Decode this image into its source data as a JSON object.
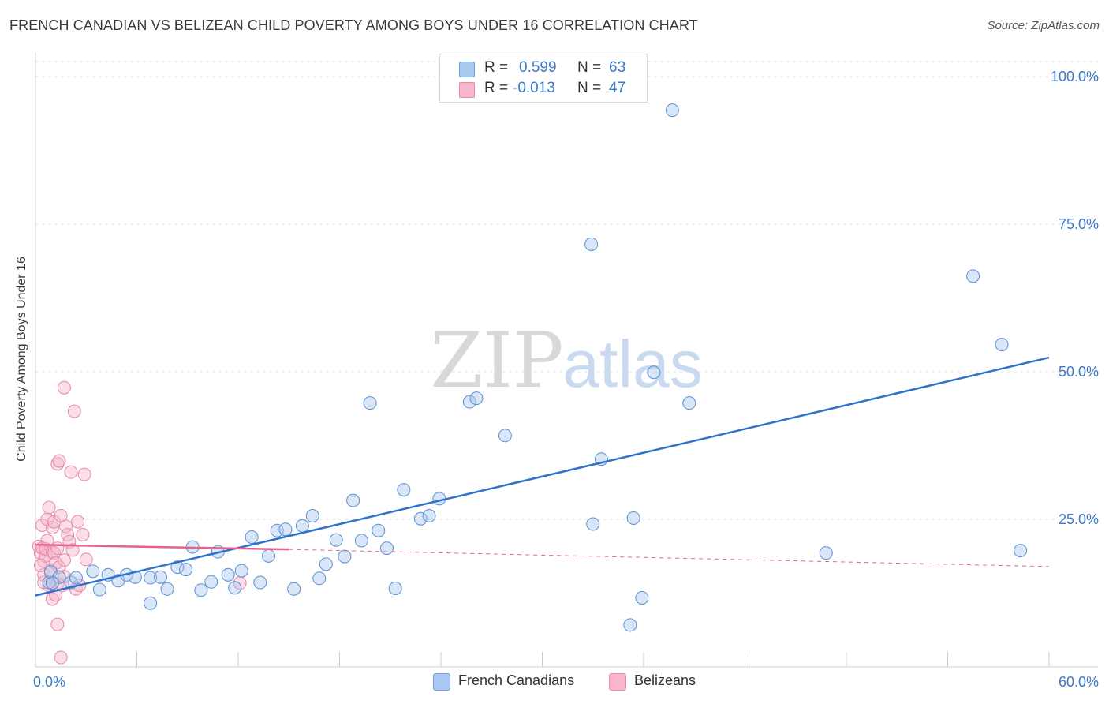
{
  "title": "FRENCH CANADIAN VS BELIZEAN CHILD POVERTY AMONG BOYS UNDER 16 CORRELATION CHART",
  "source": "Source: ZipAtlas.com",
  "watermark": {
    "zip": "ZIP",
    "atlas": "atlas"
  },
  "stats": [
    {
      "r_label": "R =",
      "r_value": "0.599",
      "n_label": "N =",
      "n_value": "63",
      "color": "#a9c8ef",
      "border": "#6f9fd8"
    },
    {
      "r_label": "R =",
      "r_value": "-0.013",
      "n_label": "N =",
      "n_value": "47",
      "color": "#f7b6cb",
      "border": "#e98aa8"
    }
  ],
  "legend": {
    "blue": "French Canadians",
    "pink": "Belizeans"
  },
  "chart_data": {
    "type": "scatter",
    "title": "FRENCH CANADIAN VS BELIZEAN CHILD POVERTY AMONG BOYS UNDER 16 CORRELATION CHART",
    "xlabel": "",
    "ylabel": "Child Poverty Among Boys Under 16",
    "xlim": [
      0,
      60
    ],
    "ylim": [
      0,
      100
    ],
    "x_tick_labels": [
      "0.0%",
      "60.0%"
    ],
    "y_tick_values": [
      25,
      50,
      75,
      100
    ],
    "y_tick_labels": [
      "25.0%",
      "50.0%",
      "75.0%",
      "100.0%"
    ],
    "grid": true,
    "colors": {
      "blue_fill": "#a9c8ef",
      "blue_stroke": "#5b8fd1",
      "blue_line": "#2f72cc",
      "pink_fill": "#f7b6cb",
      "pink_stroke": "#e58aa6",
      "pink_line": "#e8628f",
      "axis_label_blue": "#3a78c9"
    },
    "series": [
      {
        "name": "French Canadians",
        "points": [
          [
            0.8,
            14.3
          ],
          [
            0.9,
            16.1
          ],
          [
            1.4,
            15.2
          ],
          [
            2.1,
            14.3
          ],
          [
            3.4,
            16.2
          ],
          [
            3.8,
            13.1
          ],
          [
            4.3,
            15.6
          ],
          [
            4.9,
            14.6
          ],
          [
            5.4,
            15.6
          ],
          [
            5.9,
            15.2
          ],
          [
            6.8,
            15.1
          ],
          [
            6.8,
            10.8
          ],
          [
            7.4,
            15.2
          ],
          [
            7.8,
            13.2
          ],
          [
            8.4,
            16.9
          ],
          [
            8.9,
            16.5
          ],
          [
            9.3,
            20.3
          ],
          [
            9.8,
            13.0
          ],
          [
            10.4,
            14.4
          ],
          [
            10.8,
            19.5
          ],
          [
            11.4,
            15.6
          ],
          [
            11.8,
            13.4
          ],
          [
            12.2,
            16.3
          ],
          [
            12.8,
            22.0
          ],
          [
            13.3,
            14.3
          ],
          [
            13.8,
            18.8
          ],
          [
            14.3,
            23.1
          ],
          [
            14.8,
            23.3
          ],
          [
            15.3,
            13.2
          ],
          [
            15.8,
            23.9
          ],
          [
            16.4,
            25.6
          ],
          [
            16.8,
            15.0
          ],
          [
            17.2,
            17.4
          ],
          [
            17.8,
            21.5
          ],
          [
            18.3,
            18.7
          ],
          [
            18.8,
            28.2
          ],
          [
            19.3,
            21.4
          ],
          [
            19.8,
            44.7
          ],
          [
            20.3,
            23.1
          ],
          [
            20.8,
            20.1
          ],
          [
            21.3,
            13.3
          ],
          [
            21.8,
            30.0
          ],
          [
            22.8,
            25.1
          ],
          [
            23.3,
            25.6
          ],
          [
            23.9,
            28.5
          ],
          [
            25.7,
            44.9
          ],
          [
            26.1,
            45.5
          ],
          [
            27.8,
            39.2
          ],
          [
            32.9,
            71.6
          ],
          [
            33.0,
            24.2
          ],
          [
            33.5,
            35.2
          ],
          [
            35.2,
            7.1
          ],
          [
            35.4,
            25.2
          ],
          [
            35.9,
            11.7
          ],
          [
            36.6,
            49.9
          ],
          [
            37.7,
            94.3
          ],
          [
            38.7,
            44.7
          ],
          [
            46.8,
            19.3
          ],
          [
            55.5,
            66.2
          ],
          [
            57.2,
            54.6
          ],
          [
            58.3,
            19.7
          ],
          [
            1.0,
            14.2
          ],
          [
            2.4,
            15.1
          ]
        ]
      },
      {
        "name": "Belizeans",
        "points": [
          [
            0.2,
            20.4
          ],
          [
            0.3,
            19.3
          ],
          [
            0.4,
            20.1
          ],
          [
            0.4,
            24.0
          ],
          [
            0.5,
            17.9
          ],
          [
            0.5,
            15.6
          ],
          [
            0.5,
            14.3
          ],
          [
            0.6,
            18.8
          ],
          [
            0.6,
            20.0
          ],
          [
            0.7,
            25.0
          ],
          [
            0.7,
            21.4
          ],
          [
            0.8,
            27.0
          ],
          [
            0.8,
            13.8
          ],
          [
            0.9,
            16.4
          ],
          [
            1.0,
            23.6
          ],
          [
            1.0,
            19.5
          ],
          [
            1.0,
            11.5
          ],
          [
            1.1,
            19.3
          ],
          [
            1.1,
            24.6
          ],
          [
            1.2,
            12.2
          ],
          [
            1.2,
            17.6
          ],
          [
            1.3,
            14.1
          ],
          [
            1.3,
            20.1
          ],
          [
            1.3,
            34.4
          ],
          [
            1.3,
            7.2
          ],
          [
            1.4,
            34.9
          ],
          [
            1.4,
            16.9
          ],
          [
            1.5,
            1.6
          ],
          [
            1.5,
            25.6
          ],
          [
            1.6,
            13.8
          ],
          [
            1.7,
            15.3
          ],
          [
            1.7,
            18.1
          ],
          [
            1.7,
            47.3
          ],
          [
            1.8,
            23.8
          ],
          [
            1.9,
            22.4
          ],
          [
            2.0,
            21.2
          ],
          [
            2.1,
            33.0
          ],
          [
            2.2,
            19.8
          ],
          [
            2.3,
            43.3
          ],
          [
            2.4,
            13.2
          ],
          [
            2.5,
            24.6
          ],
          [
            2.6,
            13.8
          ],
          [
            2.8,
            22.4
          ],
          [
            2.9,
            32.6
          ],
          [
            3.0,
            18.2
          ],
          [
            12.1,
            14.2
          ],
          [
            0.3,
            17.2
          ]
        ]
      }
    ],
    "trendlines": [
      {
        "series": "French Canadians",
        "x": [
          0,
          60
        ],
        "y": [
          12.1,
          52.4
        ],
        "style": "solid"
      },
      {
        "series": "Belizeans",
        "x": [
          0,
          15
        ],
        "y": [
          20.7,
          19.9
        ],
        "style": "solid"
      },
      {
        "series": "Belizeans",
        "x": [
          15,
          60
        ],
        "y": [
          19.9,
          17.0
        ],
        "style": "dashed"
      }
    ]
  }
}
